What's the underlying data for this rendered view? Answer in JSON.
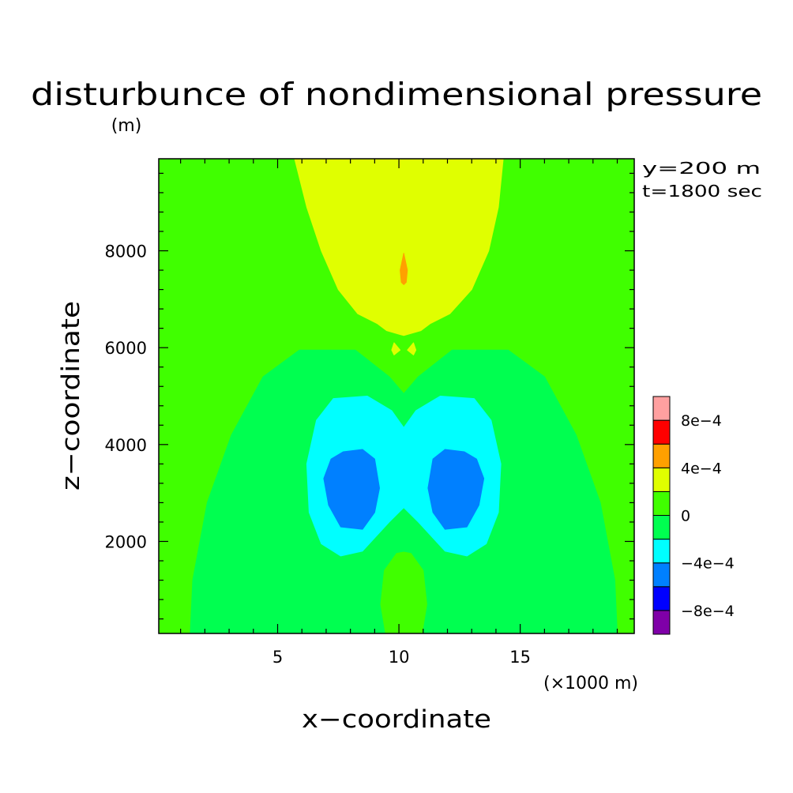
{
  "chart_data": {
    "type": "heatmap",
    "title": "disturbunce of nondimensional pressure",
    "ylabel": "z−coordinate",
    "y_unit": "(m)",
    "xlabel": "x−coordinate",
    "x_unit": "(×1000 m)",
    "annotation_y": "y=200 m",
    "annotation_t": "t=1800 sec",
    "xlim": [
      0.1,
      19.7
    ],
    "ylim": [
      100,
      9900
    ],
    "x_ticks": [
      {
        "value": 5,
        "label": "5"
      },
      {
        "value": 10,
        "label": "10"
      },
      {
        "value": 15,
        "label": "15"
      }
    ],
    "y_ticks": [
      {
        "value": 2000,
        "label": "2000"
      },
      {
        "value": 4000,
        "label": "4000"
      },
      {
        "value": 6000,
        "label": "6000"
      },
      {
        "value": 8000,
        "label": "8000"
      }
    ],
    "x_minor_step": 1,
    "y_minor_step": 400,
    "colorbar": {
      "levels": [
        {
          "range": [
            -0.001,
            -0.0008
          ],
          "color": "#7f00a8"
        },
        {
          "range": [
            -0.0008,
            -0.0006
          ],
          "color": "#0000ff"
        },
        {
          "range": [
            -0.0006,
            -0.0004
          ],
          "color": "#0080ff"
        },
        {
          "range": [
            -0.0004,
            -0.0002
          ],
          "color": "#00ffff"
        },
        {
          "range": [
            -0.0002,
            0
          ],
          "color": "#00ff50"
        },
        {
          "range": [
            0,
            0.0002
          ],
          "color": "#40ff00"
        },
        {
          "range": [
            0.0002,
            0.0004
          ],
          "color": "#e0ff00"
        },
        {
          "range": [
            0.0004,
            0.0006
          ],
          "color": "#ffa000"
        },
        {
          "range": [
            0.0006,
            0.0008
          ],
          "color": "#ff0000"
        },
        {
          "range": [
            0.0008,
            0.001
          ],
          "color": "#ffa0a0"
        }
      ],
      "tick_labels": [
        {
          "value": -0.0008,
          "label": "−8e−4"
        },
        {
          "value": -0.0004,
          "label": "−4e−4"
        },
        {
          "value": 0,
          "label": "0"
        },
        {
          "value": 0.0004,
          "label": "4e−4"
        },
        {
          "value": 0.0008,
          "label": "8e−4"
        }
      ]
    },
    "regions": [
      {
        "name": "upper-positive-lobe",
        "level": "2e-4 to 4e-4",
        "color": "#e0ff00",
        "points": [
          [
            5.7,
            9900
          ],
          [
            14.3,
            9900
          ],
          [
            14.1,
            8900
          ],
          [
            13.7,
            8000
          ],
          [
            13.0,
            7200
          ],
          [
            12.1,
            6700
          ],
          [
            11.3,
            6500
          ],
          [
            10.9,
            6350
          ],
          [
            10.2,
            6250
          ],
          [
            9.5,
            6350
          ],
          [
            9.1,
            6500
          ],
          [
            8.3,
            6700
          ],
          [
            7.5,
            7200
          ],
          [
            6.8,
            8000
          ],
          [
            6.2,
            8900
          ]
        ]
      },
      {
        "name": "upper-positive-core",
        "level": "4e-4 to 6e-4",
        "color": "#ffa000",
        "points": [
          [
            10.2,
            7950
          ],
          [
            10.35,
            7600
          ],
          [
            10.3,
            7350
          ],
          [
            10.2,
            7300
          ],
          [
            10.1,
            7350
          ],
          [
            10.05,
            7600
          ]
        ]
      },
      {
        "name": "small-positive-left",
        "level": "2e-4 to 4e-4",
        "color": "#e0ff00",
        "points": [
          [
            9.8,
            6100
          ],
          [
            10.05,
            5950
          ],
          [
            9.8,
            5850
          ],
          [
            9.7,
            5950
          ]
        ]
      },
      {
        "name": "small-positive-right",
        "level": "2e-4 to 4e-4",
        "color": "#e0ff00",
        "points": [
          [
            10.6,
            6100
          ],
          [
            10.35,
            5950
          ],
          [
            10.6,
            5850
          ],
          [
            10.7,
            5950
          ]
        ]
      },
      {
        "name": "negative-envelope",
        "level": "-2e-4 to 0",
        "color": "#00ff50",
        "points": [
          [
            1.4,
            100
          ],
          [
            1.5,
            1200
          ],
          [
            2.1,
            2800
          ],
          [
            3.1,
            4200
          ],
          [
            4.4,
            5400
          ],
          [
            5.9,
            5950
          ],
          [
            8.2,
            5950
          ],
          [
            9.6,
            5400
          ],
          [
            10.2,
            5050
          ],
          [
            10.8,
            5400
          ],
          [
            12.2,
            5950
          ],
          [
            14.5,
            5950
          ],
          [
            16.0,
            5400
          ],
          [
            17.3,
            4200
          ],
          [
            18.3,
            2800
          ],
          [
            18.9,
            1200
          ],
          [
            19.0,
            100
          ]
        ]
      },
      {
        "name": "negative-ring",
        "level": "-4e-4 to -2e-4",
        "color": "#00ffff",
        "points": [
          [
            10.2,
            4350
          ],
          [
            9.7,
            4700
          ],
          [
            8.7,
            5000
          ],
          [
            7.3,
            4950
          ],
          [
            6.6,
            4500
          ],
          [
            6.2,
            3600
          ],
          [
            6.3,
            2600
          ],
          [
            6.8,
            1950
          ],
          [
            7.6,
            1700
          ],
          [
            8.5,
            1800
          ],
          [
            9.6,
            2400
          ],
          [
            10.2,
            2700
          ],
          [
            10.8,
            2400
          ],
          [
            11.9,
            1800
          ],
          [
            12.8,
            1700
          ],
          [
            13.6,
            1950
          ],
          [
            14.1,
            2600
          ],
          [
            14.2,
            3600
          ],
          [
            13.8,
            4500
          ],
          [
            13.1,
            4950
          ],
          [
            11.7,
            5000
          ],
          [
            10.7,
            4700
          ]
        ]
      },
      {
        "name": "negative-core-left",
        "level": "-6e-4 to -4e-4",
        "color": "#0080ff",
        "points": [
          [
            7.7,
            3850
          ],
          [
            8.5,
            3900
          ],
          [
            9.0,
            3700
          ],
          [
            9.2,
            3100
          ],
          [
            9.0,
            2600
          ],
          [
            8.5,
            2250
          ],
          [
            7.6,
            2300
          ],
          [
            7.1,
            2750
          ],
          [
            6.9,
            3300
          ],
          [
            7.2,
            3700
          ]
        ]
      },
      {
        "name": "negative-core-right",
        "level": "-6e-4 to -4e-4",
        "color": "#0080ff",
        "points": [
          [
            12.7,
            3850
          ],
          [
            11.9,
            3900
          ],
          [
            11.4,
            3700
          ],
          [
            11.2,
            3100
          ],
          [
            11.4,
            2600
          ],
          [
            11.9,
            2250
          ],
          [
            12.8,
            2300
          ],
          [
            13.3,
            2750
          ],
          [
            13.5,
            3300
          ],
          [
            13.2,
            3700
          ]
        ]
      },
      {
        "name": "bottom-positive-tongue",
        "level": "0 to 2e-4",
        "color": "#40ff00",
        "points": [
          [
            9.45,
            100
          ],
          [
            9.25,
            700
          ],
          [
            9.4,
            1400
          ],
          [
            9.9,
            1750
          ],
          [
            10.2,
            1780
          ],
          [
            10.5,
            1750
          ],
          [
            11.0,
            1400
          ],
          [
            11.15,
            700
          ],
          [
            10.95,
            100
          ]
        ]
      }
    ]
  }
}
